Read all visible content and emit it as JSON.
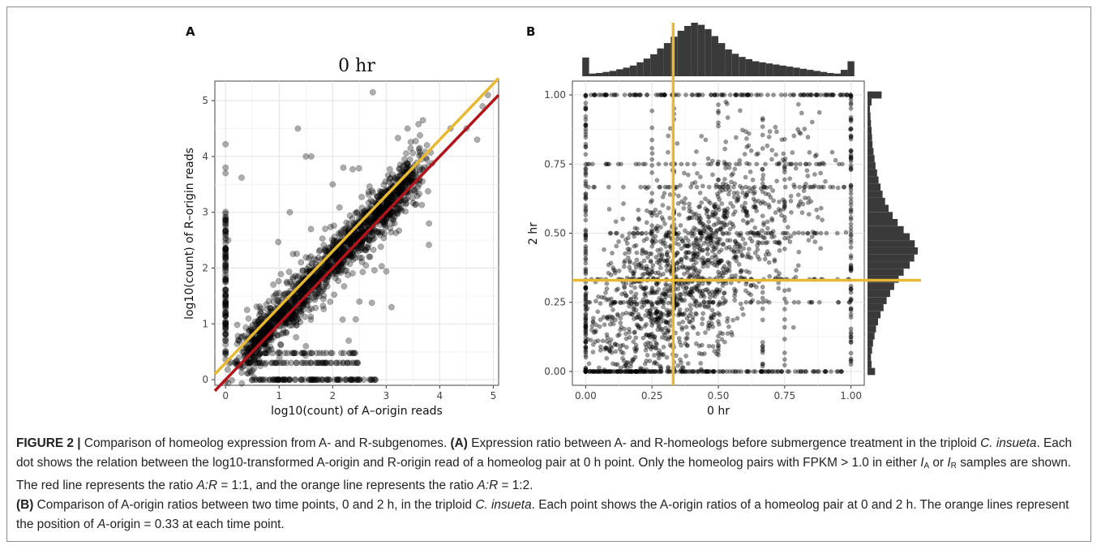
{
  "figure": {
    "panel_a_letter": "A",
    "panel_b_letter": "B"
  },
  "chart_data": [
    {
      "type": "scatter",
      "panel": "A",
      "title": "0 hr",
      "xlabel": "log10(count) of A–origin reads",
      "ylabel": "log10(count) of R–origin reads",
      "xlim": [
        -0.2,
        5.1
      ],
      "ylim": [
        -0.1,
        5.35
      ],
      "xticks": [
        0,
        1,
        2,
        3,
        4,
        5
      ],
      "yticks": [
        0,
        1,
        2,
        3,
        4,
        5
      ],
      "grid": true,
      "reference_lines": [
        {
          "color": "#B2141B",
          "intercept": 0,
          "slope": 1
        },
        {
          "color": "#E8B832",
          "intercept": 0.301,
          "slope": 1
        }
      ],
      "points_sample": [
        [
          0,
          4.22
        ],
        [
          0,
          3.8
        ],
        [
          0,
          3.7
        ],
        [
          0.3,
          3.62
        ],
        [
          0.05,
          2.5
        ],
        [
          1.35,
          4.5
        ],
        [
          2.75,
          5.15
        ],
        [
          1.5,
          4.0
        ],
        [
          1.6,
          4.0
        ],
        [
          2.0,
          3.5
        ],
        [
          2.2,
          3.8
        ],
        [
          3.4,
          4.5
        ],
        [
          4.2,
          4.5
        ],
        [
          4.5,
          4.5
        ],
        [
          4.7,
          4.3
        ],
        [
          4.9,
          5.1
        ],
        [
          4.8,
          4.9
        ],
        [
          3.3,
          3.6
        ],
        [
          3.1,
          3.0
        ],
        [
          2.5,
          2.6
        ],
        [
          2.0,
          2.1
        ],
        [
          1.8,
          1.9
        ],
        [
          1.5,
          1.6
        ],
        [
          1.2,
          1.3
        ],
        [
          1.0,
          1.2
        ],
        [
          0.8,
          0.9
        ],
        [
          2.5,
          1.4
        ],
        [
          2.3,
          0.7
        ],
        [
          1.5,
          0.6
        ],
        [
          0.9,
          0.0
        ],
        [
          2.8,
          0.0
        ],
        [
          3.1,
          1.3
        ],
        [
          1.2,
          3.0
        ],
        [
          3.8,
          2.8
        ],
        [
          2.7,
          2.2
        ]
      ]
    },
    {
      "type": "scatter",
      "panel": "B",
      "title": "",
      "xlabel": "0 hr",
      "ylabel": "2 hr",
      "xlim": [
        -0.05,
        1.05
      ],
      "ylim": [
        -0.05,
        1.05
      ],
      "xticks": [
        "0.00",
        "0.25",
        "0.50",
        "0.75",
        "1.00"
      ],
      "yticks": [
        "0.00",
        "0.25",
        "0.50",
        "0.75",
        "1.00"
      ],
      "grid": true,
      "reference_lines": [
        {
          "color": "#E8B832",
          "orientation": "vertical",
          "value": 0.33
        },
        {
          "color": "#E8B832",
          "orientation": "horizontal",
          "value": 0.33
        }
      ],
      "top_histogram": [
        0.35,
        0.05,
        0.06,
        0.08,
        0.1,
        0.13,
        0.16,
        0.2,
        0.26,
        0.33,
        0.41,
        0.52,
        0.62,
        0.74,
        0.85,
        0.94,
        1.0,
        0.96,
        0.88,
        0.75,
        0.62,
        0.5,
        0.42,
        0.36,
        0.32,
        0.28,
        0.26,
        0.24,
        0.22,
        0.2,
        0.18,
        0.16,
        0.14,
        0.12,
        0.1,
        0.08,
        0.06,
        0.05,
        0.12,
        0.28
      ],
      "right_histogram": [
        0.15,
        0.08,
        0.07,
        0.09,
        0.11,
        0.14,
        0.17,
        0.21,
        0.26,
        0.32,
        0.38,
        0.45,
        0.53,
        0.62,
        0.72,
        0.84,
        0.93,
        1.0,
        0.94,
        0.84,
        0.72,
        0.6,
        0.5,
        0.42,
        0.35,
        0.3,
        0.26,
        0.22,
        0.19,
        0.16,
        0.14,
        0.12,
        0.1,
        0.09,
        0.08,
        0.07,
        0.06,
        0.05,
        0.08,
        0.28
      ]
    }
  ],
  "caption": {
    "label": "FIGURE 2 |",
    "intro": "Comparison of homeolog expression from A- and R-subgenomes.",
    "a_label": "(A)",
    "a_text_1": "Expression ratio between A- and R-homeologs before submergence treatment in the triploid",
    "species": "C. insueta",
    "a_text_2": ". Each dot shows the relation between the log10-transformed A-origin and R-origin read of a homeolog pair at 0 h point. Only the homeolog pairs with FPKM > 1.0 in either",
    "i_letter": "I",
    "sub_a": "A",
    "or_word": "or",
    "sub_r": "R",
    "a_text_3": "samples are shown. The red line represents the ratio",
    "ratio_var": "A:R",
    "ratio_11": "= 1:1, and the orange line represents the ratio",
    "ratio_12": "= 1:2.",
    "b_label": "(B)",
    "b_text_1": "Comparison of A-origin ratios between two time points, 0 and 2 h, in the triploid",
    "b_text_2": ". Each point shows the A-origin ratios of a homeolog pair at 0 and 2 h.",
    "b_text_3": "The orange lines represent the position of",
    "a_var": "A",
    "b_text_4": "-origin = 0.33 at each time point."
  }
}
